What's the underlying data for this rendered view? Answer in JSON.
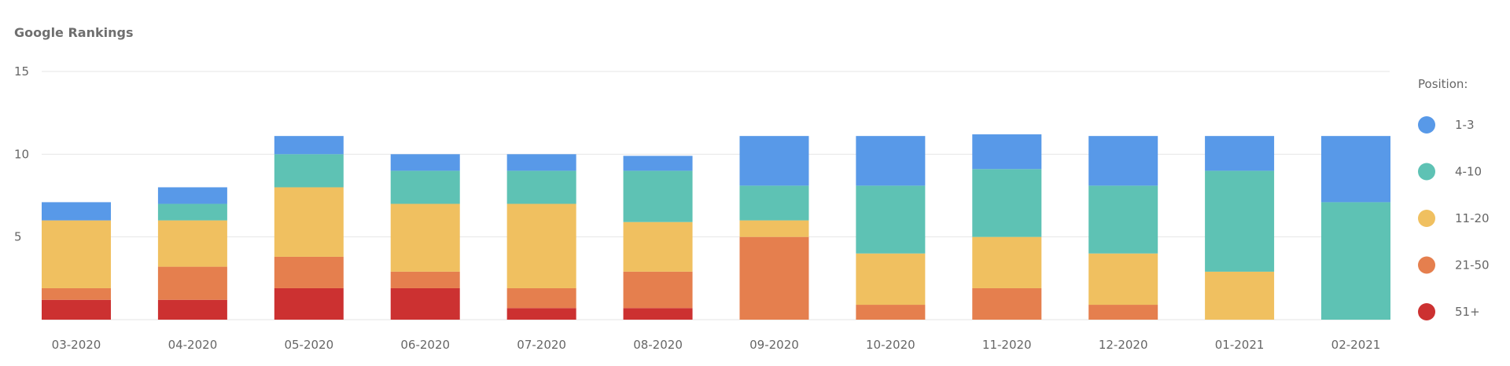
{
  "chart_data": {
    "type": "bar",
    "stacked": true,
    "title": "Google Rankings",
    "categories": [
      "03-2020",
      "04-2020",
      "05-2020",
      "06-2020",
      "07-2020",
      "08-2020",
      "09-2020",
      "10-2020",
      "11-2020",
      "12-2020",
      "01-2021",
      "02-2021"
    ],
    "ylim": [
      0,
      15
    ],
    "yticks": [
      5,
      10,
      15
    ],
    "grid": true,
    "legend": {
      "title": "Position:",
      "placement": "right"
    },
    "series": [
      {
        "name": "51+",
        "color": "#cc3131",
        "values": [
          1.2,
          1.2,
          1.9,
          1.9,
          0.7,
          0.7,
          0,
          0,
          0,
          0,
          0,
          0
        ]
      },
      {
        "name": "21-50",
        "color": "#e57f4e",
        "values": [
          0.7,
          2.0,
          1.9,
          1.0,
          1.2,
          2.2,
          5,
          0.9,
          1.9,
          0.9,
          0,
          0
        ]
      },
      {
        "name": "11-20",
        "color": "#f0c060",
        "values": [
          4.1,
          2.8,
          4.2,
          4.1,
          5.1,
          3.0,
          1,
          3.1,
          3.1,
          3.1,
          2.9,
          0
        ]
      },
      {
        "name": "4-10",
        "color": "#5ec2b4",
        "values": [
          0,
          1.0,
          2.0,
          2.0,
          2.0,
          3.1,
          2.1,
          4.1,
          4.1,
          4.1,
          6.1,
          7.1
        ]
      },
      {
        "name": "1-3",
        "color": "#5899e8",
        "values": [
          1.1,
          1.0,
          1.1,
          1.0,
          1.0,
          0.9,
          3.0,
          3.0,
          2.1,
          3.0,
          2.1,
          4.0
        ]
      }
    ]
  }
}
